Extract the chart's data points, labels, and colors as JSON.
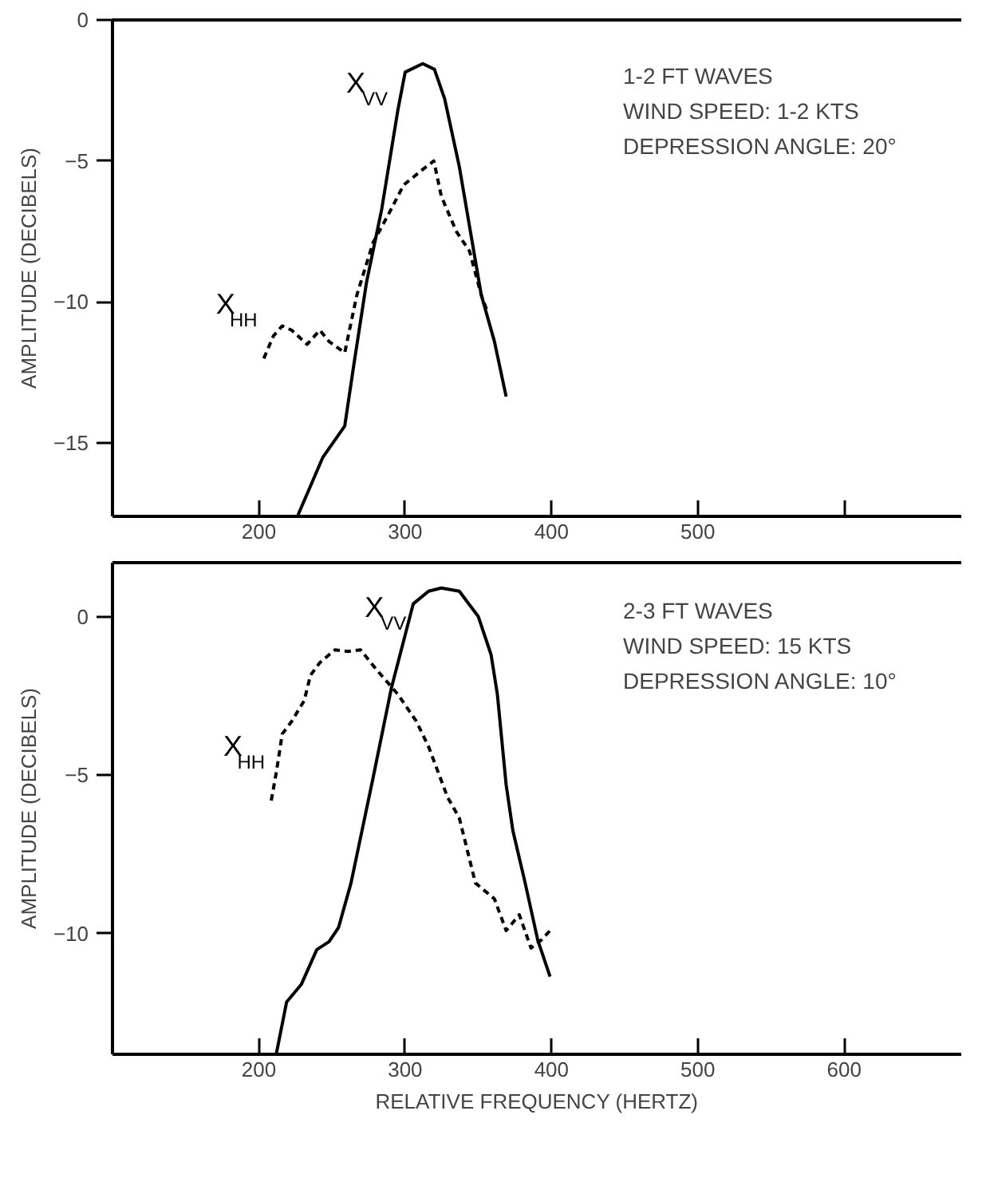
{
  "chart_data": [
    {
      "type": "line",
      "ylabel": "AMPLITUDE (DECIBELS)",
      "annotations": [
        "1-2 FT WAVES",
        "WIND SPEED: 1-2 KTS",
        "DEPRESSION ANGLE: 20°"
      ],
      "xlim": [
        100,
        680
      ],
      "xticks": [
        200,
        300,
        400,
        500,
        {
          "value": 600,
          "label": null
        }
      ],
      "ylim": [
        -17.6,
        0
      ],
      "yticks": [
        0,
        -5,
        -10,
        -15
      ],
      "grid": false,
      "series": [
        {
          "name": "X$_{VV}$",
          "color": "#000000",
          "line_style": "solid",
          "x": [
            226.8,
            243.8,
            258.7,
            265,
            273.6,
            284,
            295,
            300,
            312,
            320,
            327,
            337,
            352,
            361,
            369
          ],
          "values": [
            -17.55,
            -15.5,
            -14.4,
            -12.2,
            -9.3,
            -6.7,
            -3.2,
            -1.85,
            -1.55,
            -1.75,
            -2.8,
            -5.2,
            -9.75,
            -11.4,
            -13.35
          ]
        },
        {
          "name": "X$_{HH}$",
          "color": "#000000",
          "line_style": "dashed",
          "x": [
            203.4,
            210,
            216,
            222.5,
            233,
            241.7,
            248,
            258.7,
            267,
            278,
            288.5,
            299,
            312,
            319.6,
            324.7,
            335,
            344,
            352,
            356.6
          ],
          "values": [
            -12.0,
            -11.2,
            -10.85,
            -11.0,
            -11.5,
            -11.0,
            -11.4,
            -11.8,
            -9.75,
            -7.9,
            -6.9,
            -5.85,
            -5.3,
            -5.0,
            -6.25,
            -7.5,
            -8.2,
            -9.75,
            -10.4
          ]
        }
      ]
    },
    {
      "type": "line",
      "xlabel": "RELATIVE FREQUENCY (HERTZ)",
      "ylabel": "AMPLITUDE (DECIBELS)",
      "annotations": [
        "2-3 FT WAVES",
        "WIND SPEED: 15 KTS",
        "DEPRESSION ANGLE: 10°"
      ],
      "xlim": [
        100,
        680
      ],
      "xticks": [
        200,
        300,
        400,
        500,
        600
      ],
      "ylim": [
        -13.8,
        1.7
      ],
      "yticks": [
        0,
        -5,
        -10
      ],
      "grid": false,
      "series": [
        {
          "name": "X$_{VV}$",
          "color": "#000000",
          "line_style": "solid",
          "x": [
            211.9,
            219,
            229,
            239.6,
            248,
            254.5,
            263,
            278,
            290.6,
            305.5,
            316,
            324.7,
            337,
            350,
            358.7,
            363,
            369,
            373.6,
            382,
            390.6,
            399
          ],
          "values": [
            -13.8,
            -12.15,
            -11.6,
            -10.5,
            -10.25,
            -9.8,
            -8.4,
            -5.1,
            -2.25,
            0.4,
            0.8,
            0.9,
            0.8,
            0,
            -1.2,
            -2.45,
            -5.3,
            -6.75,
            -8.4,
            -10.2,
            -11.35
          ]
        },
        {
          "name": "X$_{HH}$",
          "color": "#000000",
          "line_style": "dashed",
          "x": [
            208.5,
            212,
            216,
            222.5,
            231,
            235.3,
            241.7,
            252,
            261,
            269.5,
            280,
            295,
            307.6,
            316,
            329,
            337,
            348,
            361,
            369,
            378,
            386,
            393,
            399
          ],
          "values": [
            -5.8,
            -4.9,
            -3.7,
            -3.3,
            -2.65,
            -1.85,
            -1.45,
            -1.05,
            -1.1,
            -1.05,
            -1.65,
            -2.45,
            -3.3,
            -4.1,
            -5.7,
            -6.35,
            -8.4,
            -8.9,
            -9.9,
            -9.4,
            -10.45,
            -10.2,
            -9.9
          ]
        }
      ]
    }
  ]
}
